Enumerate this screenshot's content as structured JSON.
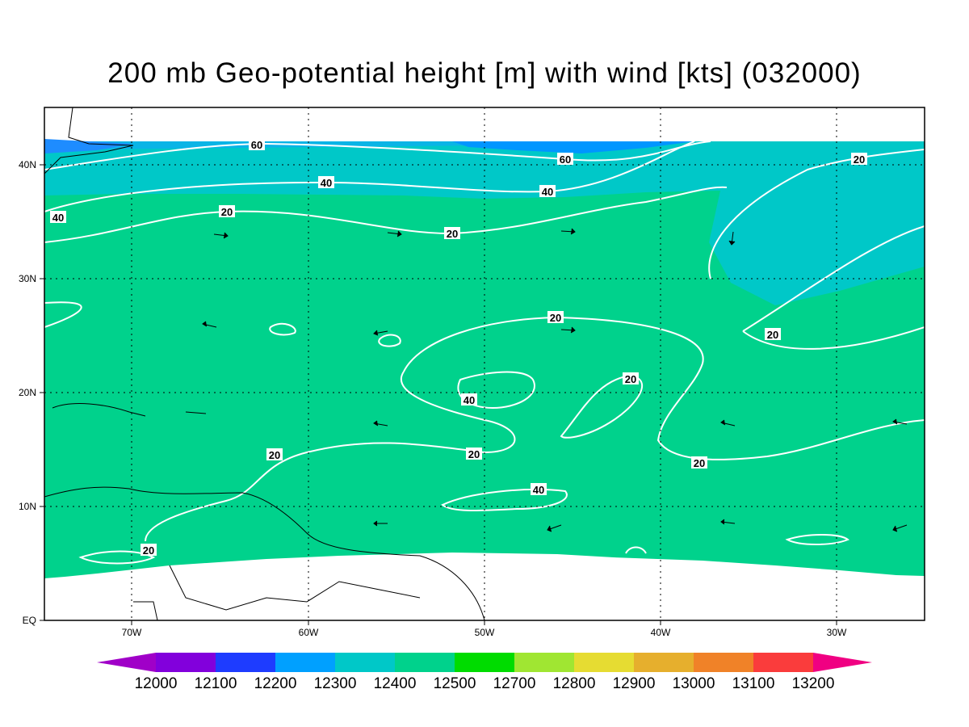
{
  "title": "200 mb Geo-potential height [m] with wind [kts] (032000)",
  "map": {
    "lon_labels": [
      "70W",
      "60W",
      "50W",
      "40W",
      "30W"
    ],
    "lat_labels": [
      "EQ",
      "10N",
      "20N",
      "30N",
      "40N"
    ],
    "contour_labels": [
      60,
      60,
      20,
      40,
      40,
      40,
      20,
      20,
      20,
      20,
      20,
      40,
      20,
      20,
      20,
      40,
      20
    ]
  },
  "colorbar": {
    "labels": [
      12000,
      12100,
      12200,
      12300,
      12400,
      12500,
      12700,
      12800,
      12900,
      13000,
      13100,
      13200
    ],
    "colors": [
      "#a000c8",
      "#8200dc",
      "#1e3cff",
      "#00a0ff",
      "#00c8c8",
      "#00d28c",
      "#00dc00",
      "#a0e632",
      "#e6dc32",
      "#e6af2d",
      "#f08228",
      "#fa3c3c",
      "#f00082"
    ]
  }
}
